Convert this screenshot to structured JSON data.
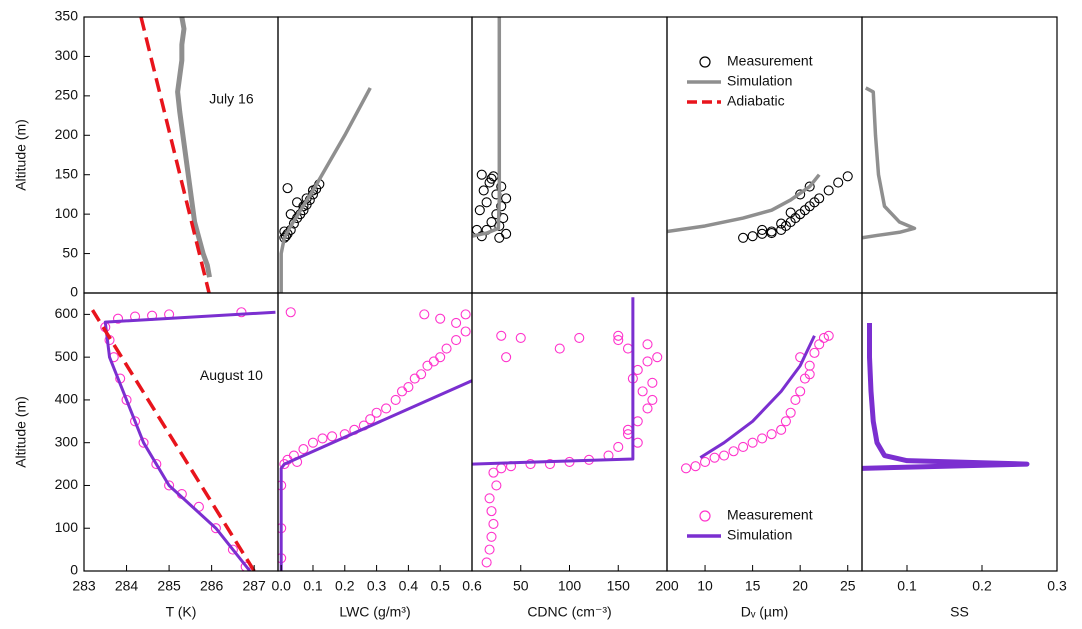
{
  "chart_data": [
    {
      "type": "profile",
      "xlim": [
        283,
        287.56
      ],
      "ylim": [
        0,
        350
      ],
      "yticks": [
        0,
        50,
        100,
        150,
        200,
        250,
        300,
        350
      ],
      "ylabel": "Altitude (m)",
      "annotation": "July 16",
      "series": [
        {
          "style": "line",
          "line_width": 5,
          "color": "#8f8f8f",
          "x": [
            285.95,
            285.9,
            285.8,
            285.7,
            285.6,
            285.55,
            285.5,
            285.45,
            285.4,
            285.35,
            285.3,
            285.25,
            285.2,
            285.25,
            285.3,
            285.3,
            285.35,
            285.3
          ],
          "y": [
            20,
            35,
            50,
            70,
            90,
            110,
            130,
            150,
            170,
            190,
            210,
            230,
            255,
            275,
            295,
            315,
            335,
            350
          ]
        },
        {
          "style": "dashed",
          "line_width": 3.5,
          "color": "#e8141c",
          "x": [
            284.34,
            285.94
          ],
          "y": [
            350,
            0
          ]
        }
      ]
    },
    {
      "type": "profile",
      "xlim": [
        -0.01,
        0.6
      ],
      "ylim": [
        0,
        350
      ],
      "series": [
        {
          "style": "markers",
          "color": "#000000",
          "x": [
            0.01,
            0.015,
            0.02,
            0.01,
            0.03,
            0.04,
            0.05,
            0.06,
            0.07,
            0.08,
            0.09,
            0.1,
            0.11,
            0.12,
            0.05,
            0.08,
            0.1,
            0.07,
            0.03,
            0.02
          ],
          "y": [
            70,
            72,
            75,
            78,
            80,
            88,
            95,
            100,
            105,
            112,
            118,
            125,
            132,
            138,
            115,
            120,
            130,
            110,
            100,
            133
          ]
        },
        {
          "style": "line",
          "line_width": 3.5,
          "color": "#8f8f8f",
          "x": [
            0,
            0,
            0.01,
            0.03,
            0.1,
            0.2,
            0.28
          ],
          "y": [
            0,
            50,
            70,
            85,
            130,
            200,
            260
          ]
        }
      ]
    },
    {
      "type": "profile",
      "xlim": [
        0,
        200
      ],
      "ylim": [
        0,
        350
      ],
      "series": [
        {
          "style": "markers",
          "color": "#000000",
          "x": [
            10,
            15,
            20,
            25,
            30,
            35,
            12,
            18,
            22,
            28,
            32,
            8,
            15,
            25,
            30,
            20,
            35,
            10,
            5,
            28
          ],
          "y": [
            72,
            80,
            90,
            100,
            110,
            120,
            130,
            140,
            148,
            85,
            95,
            105,
            115,
            125,
            135,
            145,
            75,
            150,
            80,
            70
          ]
        },
        {
          "style": "line",
          "line_width": 3.5,
          "color": "#8f8f8f",
          "x": [
            0,
            15,
            27,
            28,
            28,
            28
          ],
          "y": [
            72,
            76,
            82,
            120,
            250,
            350
          ]
        }
      ]
    },
    {
      "type": "profile",
      "xlim": [
        6,
        26.5
      ],
      "ylim": [
        0,
        350
      ],
      "legend": {
        "position": "upper right",
        "entries": [
          {
            "name": "Measurement",
            "style": "markers",
            "color": "#000000"
          },
          {
            "name": "Simulation",
            "style": "line",
            "color": "#8f8f8f"
          },
          {
            "name": "Adiabatic",
            "style": "dashed",
            "color": "#e8141c"
          }
        ]
      },
      "series": [
        {
          "style": "markers",
          "color": "#000000",
          "x": [
            14,
            15,
            16,
            17,
            18,
            18.5,
            19,
            19.5,
            20,
            20.5,
            21,
            21.5,
            22,
            23,
            24,
            25,
            16,
            18,
            19,
            20,
            17,
            21
          ],
          "y": [
            70,
            72,
            75,
            78,
            80,
            85,
            90,
            95,
            100,
            105,
            110,
            115,
            120,
            130,
            140,
            148,
            80,
            88,
            102,
            125,
            76,
            135
          ]
        },
        {
          "style": "line",
          "line_width": 3.5,
          "color": "#8f8f8f",
          "x": [
            6,
            10,
            14,
            17,
            19,
            21,
            22
          ],
          "y": [
            78,
            85,
            95,
            105,
            118,
            135,
            150
          ]
        }
      ]
    },
    {
      "type": "profile",
      "xlim": [
        0.04,
        0.3
      ],
      "ylim": [
        0,
        350
      ],
      "series": [
        {
          "style": "line",
          "line_width": 3.5,
          "color": "#8f8f8f",
          "x": [
            0.045,
            0.055,
            0.058,
            0.062,
            0.07,
            0.09,
            0.11,
            0.09,
            0.06,
            0.04
          ],
          "y": [
            260,
            255,
            200,
            150,
            110,
            90,
            82,
            77,
            73,
            70
          ]
        }
      ]
    },
    {
      "type": "profile",
      "xlim": [
        283,
        287.56
      ],
      "ylim": [
        0,
        650
      ],
      "yticks": [
        0,
        100,
        200,
        300,
        400,
        500,
        600
      ],
      "xticks": [
        283,
        284,
        285,
        286,
        287
      ],
      "ylabel": "Altitude (m)",
      "xlabel": "T (K)",
      "annotation": "August 10",
      "series": [
        {
          "style": "markers",
          "color": "#ff33cc",
          "x": [
            286.8,
            286.5,
            286.1,
            285.7,
            285.3,
            285.0,
            284.7,
            284.4,
            284.2,
            284.0,
            283.85,
            283.7,
            283.6,
            283.5,
            283.8,
            284.2,
            284.6,
            285.0,
            286.7
          ],
          "y": [
            10,
            50,
            100,
            150,
            180,
            200,
            250,
            300,
            350,
            400,
            450,
            500,
            540,
            570,
            590,
            595,
            597,
            600,
            605
          ]
        },
        {
          "style": "line",
          "line_width": 3,
          "color": "#7b2fd0",
          "x": [
            286.9,
            286.1,
            285.0,
            284.4,
            284.0,
            283.6,
            283.5,
            287.5
          ],
          "y": [
            0,
            100,
            200,
            300,
            400,
            500,
            582,
            605
          ]
        },
        {
          "style": "dashed",
          "line_width": 3.5,
          "color": "#e8141c",
          "x": [
            287.0,
            283.2
          ],
          "y": [
            0,
            610
          ]
        }
      ]
    },
    {
      "type": "profile",
      "xlim": [
        -0.01,
        0.6
      ],
      "ylim": [
        0,
        650
      ],
      "xticks": [
        {
          "value": 0,
          "label": "0.0"
        },
        0.1,
        0.2,
        0.3,
        0.4,
        0.5,
        0.6
      ],
      "xlabel": "LWC (g/m³)",
      "series": [
        {
          "style": "markers",
          "color": "#ff33cc",
          "x": [
            0,
            0,
            0,
            0.01,
            0.02,
            0.04,
            0.07,
            0.1,
            0.13,
            0.16,
            0.2,
            0.23,
            0.26,
            0.28,
            0.3,
            0.33,
            0.36,
            0.38,
            0.4,
            0.42,
            0.44,
            0.46,
            0.48,
            0.5,
            0.52,
            0.55,
            0.58,
            0.45,
            0.5,
            0.55,
            0.58,
            0.03,
            0.05
          ],
          "y": [
            30,
            100,
            200,
            250,
            260,
            270,
            285,
            300,
            310,
            315,
            320,
            330,
            340,
            355,
            370,
            380,
            400,
            420,
            430,
            450,
            460,
            480,
            490,
            500,
            520,
            540,
            560,
            600,
            590,
            580,
            600,
            605,
            255
          ]
        },
        {
          "style": "line",
          "line_width": 3,
          "color": "#7b2fd0",
          "x": [
            0,
            0,
            0.01,
            0.6
          ],
          "y": [
            0,
            240,
            250,
            445
          ]
        }
      ]
    },
    {
      "type": "profile",
      "xlim": [
        0,
        200
      ],
      "ylim": [
        0,
        650
      ],
      "xticks": [
        50,
        100,
        150,
        200
      ],
      "xlabel": "CDNC (cm⁻³)",
      "series": [
        {
          "style": "markers",
          "color": "#ff33cc",
          "x": [
            15,
            18,
            20,
            22,
            20,
            18,
            25,
            22,
            30,
            40,
            60,
            80,
            100,
            120,
            140,
            150,
            160,
            170,
            180,
            185,
            175,
            165,
            170,
            180,
            190,
            160,
            150,
            30,
            35,
            50,
            90,
            110,
            150,
            180,
            170,
            160,
            185
          ],
          "y": [
            20,
            50,
            80,
            110,
            140,
            170,
            200,
            230,
            240,
            245,
            250,
            250,
            255,
            260,
            270,
            290,
            320,
            350,
            380,
            400,
            420,
            450,
            470,
            490,
            500,
            520,
            540,
            550,
            500,
            545,
            520,
            545,
            550,
            530,
            300,
            330,
            440
          ]
        },
        {
          "style": "line",
          "line_width": 3,
          "color": "#7b2fd0",
          "x": [
            0,
            165,
            165
          ],
          "y": [
            250,
            262,
            640
          ]
        }
      ]
    },
    {
      "type": "profile",
      "xlim": [
        6,
        26.5
      ],
      "ylim": [
        0,
        650
      ],
      "xticks": [
        10,
        15,
        20,
        25
      ],
      "xlabel": "Dᵥ (µm)",
      "legend": {
        "position": "lower right",
        "entries": [
          {
            "name": "Measurement",
            "style": "markers",
            "color": "#ff33cc"
          },
          {
            "name": "Simulation",
            "style": "line",
            "color": "#7b2fd0"
          }
        ]
      },
      "series": [
        {
          "style": "markers",
          "color": "#ff33cc",
          "x": [
            8,
            9,
            10,
            11,
            12,
            13,
            14,
            15,
            16,
            17,
            18,
            18.5,
            19,
            19.5,
            20,
            20.5,
            21,
            21.5,
            22,
            22.5,
            23,
            20,
            21
          ],
          "y": [
            240,
            245,
            255,
            265,
            270,
            280,
            290,
            300,
            310,
            320,
            330,
            350,
            370,
            400,
            420,
            450,
            480,
            510,
            530,
            545,
            550,
            500,
            460
          ]
        },
        {
          "style": "line",
          "line_width": 3,
          "color": "#7b2fd0",
          "x": [
            9.5,
            12,
            15,
            18,
            20,
            21.5
          ],
          "y": [
            265,
            300,
            350,
            420,
            480,
            550
          ]
        }
      ]
    },
    {
      "type": "profile",
      "xlim": [
        0.04,
        0.3
      ],
      "ylim": [
        0,
        650
      ],
      "xticks": [
        0.1,
        0.2,
        0.3
      ],
      "xlabel": "SS",
      "series": [
        {
          "style": "line",
          "line_width": 5,
          "color": "#7b2fd0",
          "x": [
            0.05,
            0.05,
            0.052,
            0.055,
            0.06,
            0.07,
            0.1,
            0.26,
            0.15,
            0.04
          ],
          "y": [
            580,
            500,
            420,
            350,
            300,
            270,
            258,
            250,
            245,
            240
          ]
        }
      ]
    }
  ]
}
